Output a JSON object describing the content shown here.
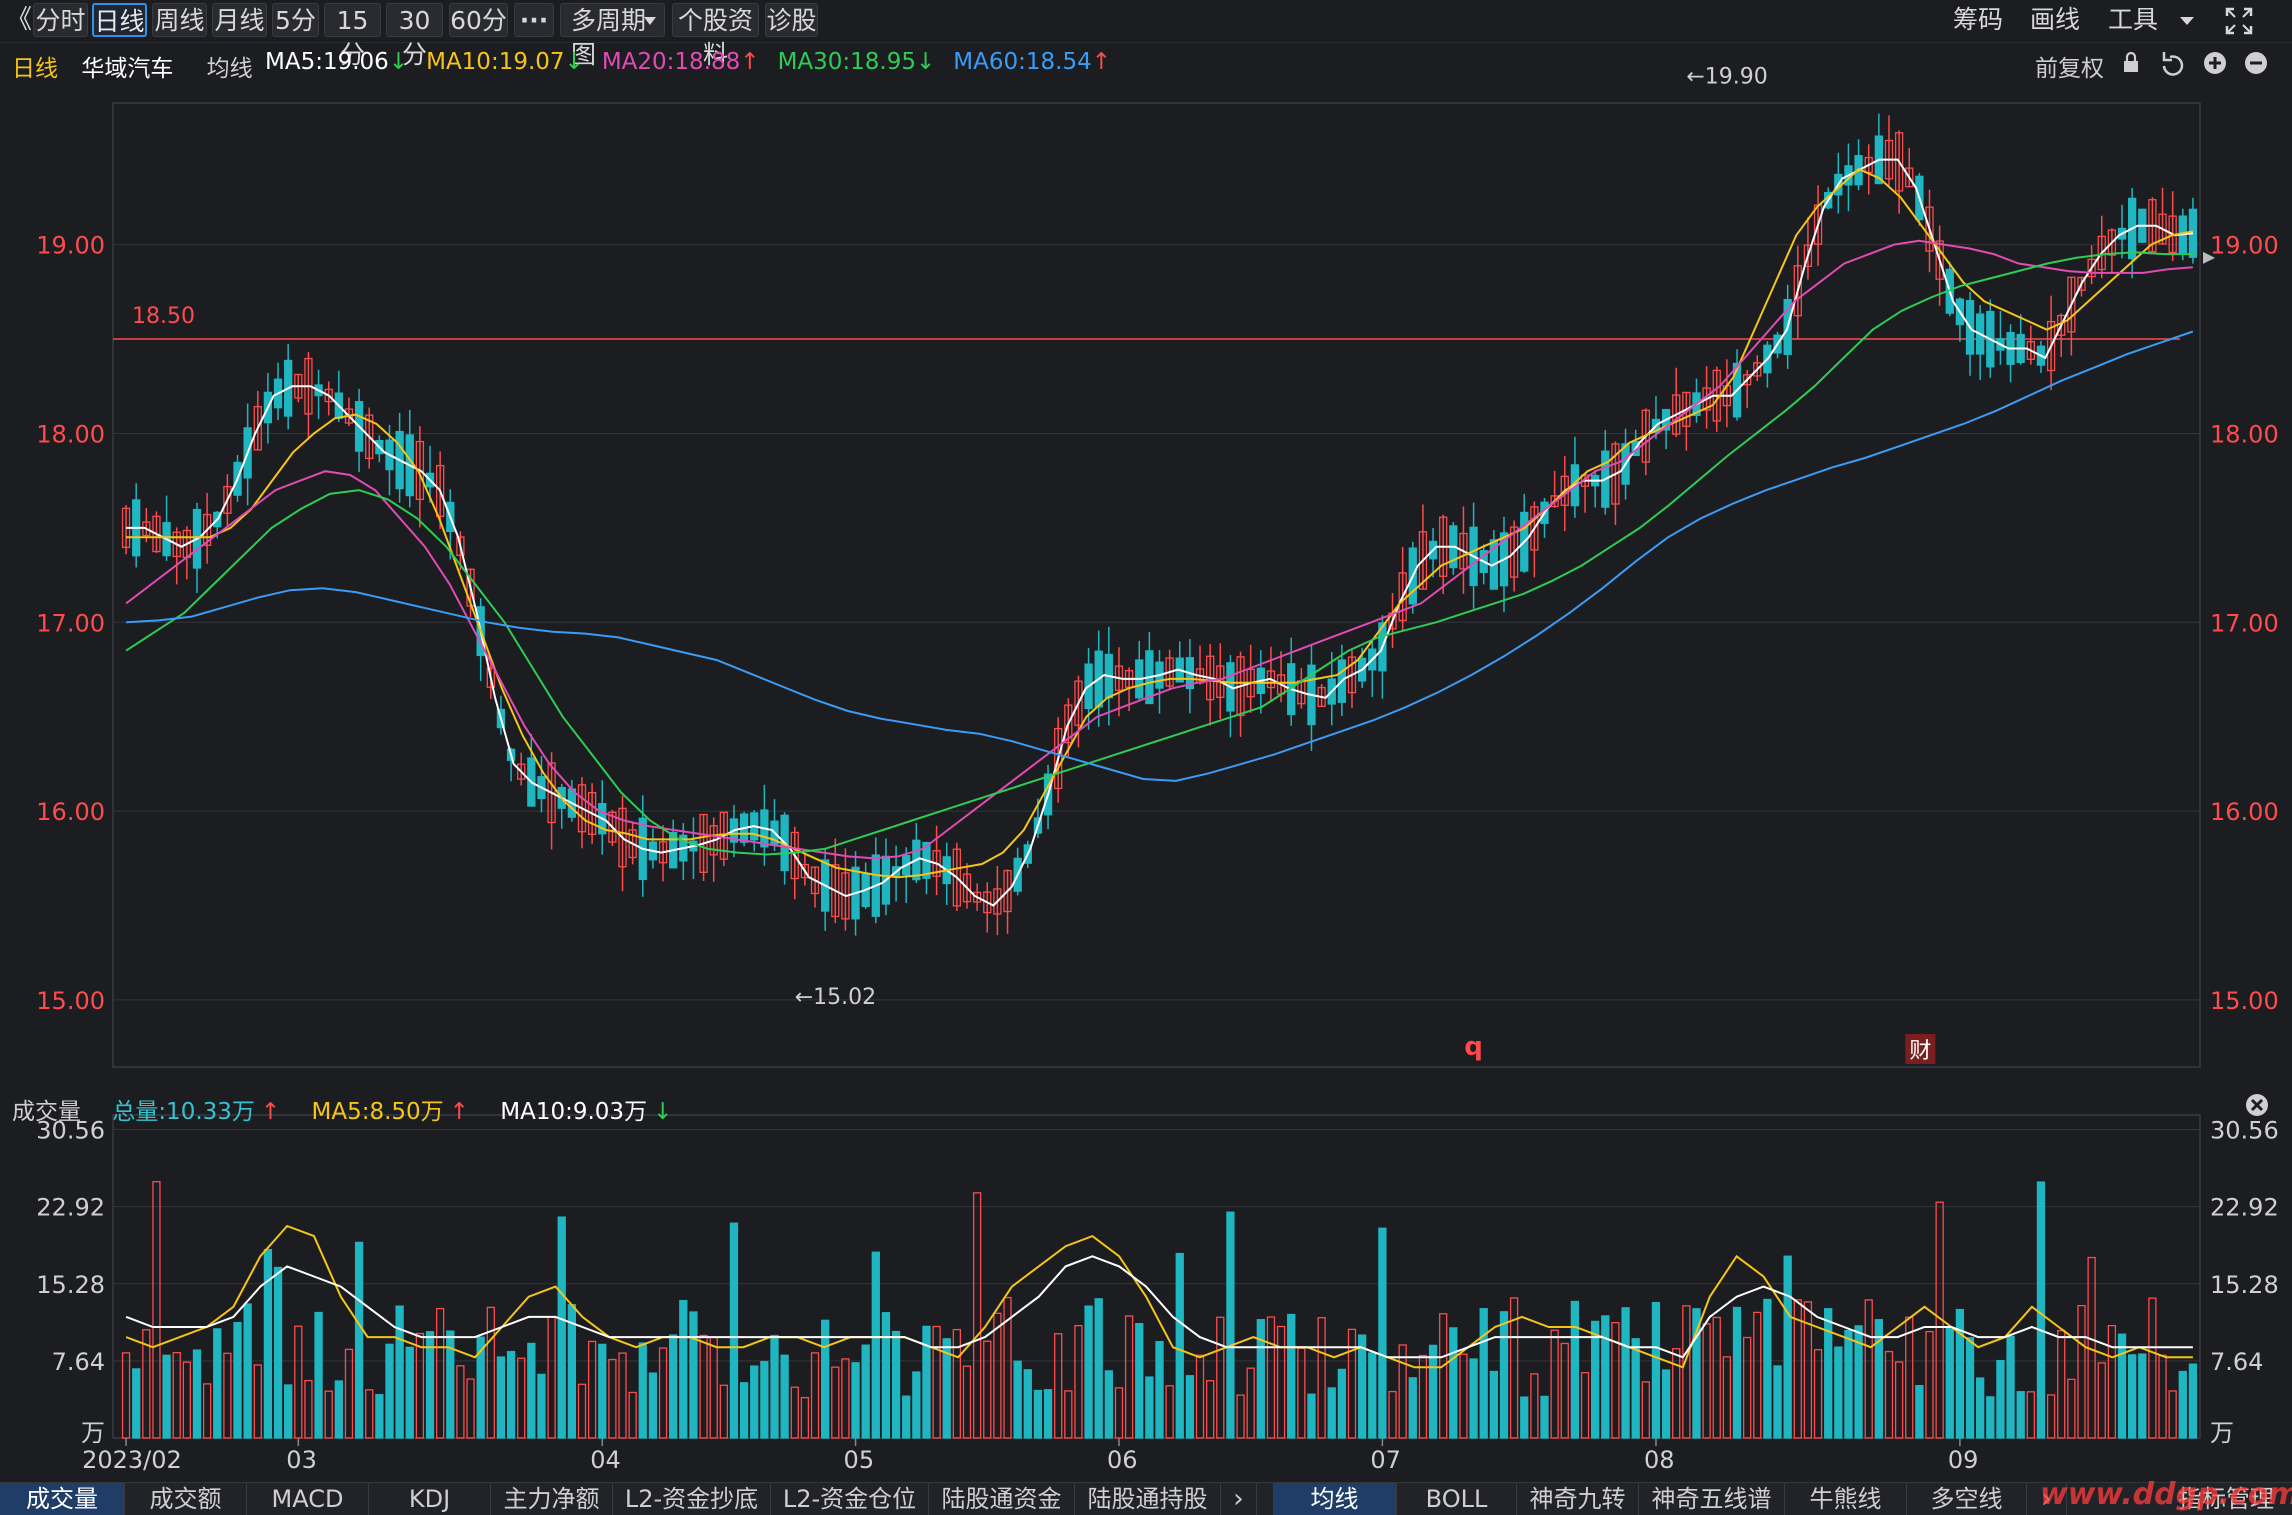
{
  "toolbar": {
    "back": "《",
    "tabs": [
      "分时",
      "日线",
      "周线",
      "月线",
      "5分",
      "15分",
      "30分",
      "60分",
      "···",
      "多周期图",
      "个股资料",
      "诊股"
    ],
    "active_tab": "日线",
    "right": [
      "筹码",
      "画线",
      "工具"
    ]
  },
  "legend": {
    "period": "日线",
    "stock_name": "华域汽车",
    "avg_label": "均线",
    "ma": [
      {
        "text": "MA5:19.06",
        "dir": "down",
        "color": "#ffffff"
      },
      {
        "text": "MA10:19.07",
        "dir": "down",
        "color": "#f5c518"
      },
      {
        "text": "MA20:18.88",
        "dir": "up",
        "color": "#e04bb4"
      },
      {
        "text": "MA30:18.95",
        "dir": "down",
        "color": "#2ecc55"
      },
      {
        "text": "MA60:18.54",
        "dir": "up",
        "color": "#3b9cf5"
      }
    ],
    "adjust": "前复权"
  },
  "volume_legend": {
    "title": "成交量",
    "total": "总量:10.33万",
    "ma5": "MA5:8.50万",
    "ma10": "MA10:9.03万"
  },
  "bottom_tabs_left": [
    "成交量",
    "成交额",
    "MACD",
    "KDJ",
    "主力净额",
    "L2-资金抄底",
    "L2-资金仓位",
    "陆股通资金",
    "陆股通持股"
  ],
  "bottom_tabs_right": [
    "均线",
    "BOLL",
    "神奇九转",
    "神奇五线谱",
    "牛熊线",
    "多空线"
  ],
  "bottom_right_label": "指标管理",
  "watermark": "www.ddgp.com",
  "chart_data": {
    "type": "candlestick",
    "price_axis": {
      "ticks": [
        "19.00",
        "18.00",
        "17.00",
        "16.00",
        "15.00"
      ],
      "ylim": [
        14.65,
        19.75
      ]
    },
    "volume_axis": {
      "ticks": [
        "30.56",
        "22.92",
        "15.28",
        "7.64",
        "万"
      ],
      "ylim": [
        0,
        32
      ],
      "unit": "万"
    },
    "x_month_labels": [
      {
        "label": "2023/02",
        "index": 0
      },
      {
        "label": "03",
        "index": 17
      },
      {
        "label": "04",
        "index": 47
      },
      {
        "label": "05",
        "index": 72
      },
      {
        "label": "06",
        "index": 98
      },
      {
        "label": "07",
        "index": 124
      },
      {
        "label": "08",
        "index": 151
      },
      {
        "label": "09",
        "index": 181
      }
    ],
    "hline": {
      "label": "18.50",
      "value": 18.5
    },
    "annotations": [
      {
        "text": "←19.90",
        "index": 154,
        "value": 19.9
      },
      {
        "text": "←15.02",
        "index": 66,
        "value": 15.02
      }
    ],
    "markers": [
      {
        "text": "q",
        "index": 133
      },
      {
        "text": "财",
        "index": 177
      }
    ],
    "series": [
      {
        "name": "MA5",
        "color": "#ffffff",
        "values": [
          17.5,
          17.5,
          17.45,
          17.4,
          17.45,
          17.55,
          17.75,
          18.0,
          18.2,
          18.25,
          18.25,
          18.2,
          18.1,
          18.0,
          17.9,
          17.85,
          17.8,
          17.7,
          17.45,
          17.05,
          16.6,
          16.25,
          16.15,
          16.1,
          16.05,
          16.0,
          15.95,
          15.85,
          15.8,
          15.78,
          15.8,
          15.82,
          15.85,
          15.9,
          15.92,
          15.9,
          15.8,
          15.65,
          15.6,
          15.55,
          15.58,
          15.62,
          15.7,
          15.75,
          15.72,
          15.65,
          15.55,
          15.5,
          15.6,
          15.8,
          16.1,
          16.45,
          16.65,
          16.72,
          16.7,
          16.7,
          16.72,
          16.75,
          16.72,
          16.7,
          16.65,
          16.68,
          16.7,
          16.65,
          16.62,
          16.6,
          16.7,
          16.75,
          16.85,
          17.1,
          17.3,
          17.4,
          17.4,
          17.35,
          17.3,
          17.35,
          17.45,
          17.6,
          17.7,
          17.75,
          17.75,
          17.8,
          17.95,
          18.05,
          18.1,
          18.15,
          18.2,
          18.2,
          18.3,
          18.4,
          18.55,
          18.9,
          19.2,
          19.35,
          19.4,
          19.45,
          19.45,
          19.3,
          19.0,
          18.7,
          18.55,
          18.5,
          18.45,
          18.45,
          18.4,
          18.6,
          18.8,
          18.95,
          19.05,
          19.1,
          19.1,
          19.05,
          19.06
        ]
      },
      {
        "name": "MA10",
        "color": "#f5c518",
        "values": [
          17.45,
          17.45,
          17.45,
          17.45,
          17.45,
          17.5,
          17.6,
          17.75,
          17.9,
          18.0,
          18.08,
          18.1,
          18.05,
          17.95,
          17.8,
          17.55,
          17.25,
          16.95,
          16.65,
          16.4,
          16.2,
          16.05,
          15.95,
          15.9,
          15.88,
          15.85,
          15.85,
          15.85,
          15.87,
          15.88,
          15.88,
          15.85,
          15.8,
          15.75,
          15.7,
          15.68,
          15.66,
          15.65,
          15.66,
          15.68,
          15.7,
          15.72,
          15.78,
          15.9,
          16.1,
          16.3,
          16.5,
          16.6,
          16.65,
          16.68,
          16.7,
          16.7,
          16.69,
          16.68,
          16.68,
          16.68,
          16.68,
          16.7,
          16.72,
          16.8,
          16.95,
          17.1,
          17.2,
          17.3,
          17.35,
          17.4,
          17.45,
          17.5,
          17.6,
          17.7,
          17.8,
          17.85,
          17.95,
          18.0,
          18.05,
          18.1,
          18.15,
          18.3,
          18.55,
          18.8,
          19.05,
          19.2,
          19.3,
          19.4,
          19.35,
          19.25,
          19.1,
          18.95,
          18.8,
          18.7,
          18.65,
          18.6,
          18.55,
          18.6,
          18.7,
          18.8,
          18.9,
          19.0,
          19.05,
          19.07
        ]
      },
      {
        "name": "MA20",
        "color": "#e04bb4",
        "values": [
          17.1,
          17.2,
          17.3,
          17.4,
          17.5,
          17.6,
          17.7,
          17.75,
          17.8,
          17.78,
          17.7,
          17.55,
          17.4,
          17.2,
          16.95,
          16.7,
          16.45,
          16.25,
          16.1,
          16.0,
          15.95,
          15.92,
          15.9,
          15.88,
          15.86,
          15.84,
          15.82,
          15.8,
          15.78,
          15.76,
          15.75,
          15.76,
          15.8,
          15.9,
          16.0,
          16.1,
          16.2,
          16.3,
          16.4,
          16.5,
          16.55,
          16.6,
          16.65,
          16.68,
          16.7,
          16.75,
          16.8,
          16.85,
          16.9,
          16.95,
          17.0,
          17.05,
          17.1,
          17.2,
          17.3,
          17.4,
          17.5,
          17.6,
          17.7,
          17.8,
          17.85,
          17.95,
          18.05,
          18.15,
          18.25,
          18.4,
          18.55,
          18.7,
          18.8,
          18.9,
          18.95,
          19.0,
          19.02,
          19.0,
          18.98,
          18.95,
          18.9,
          18.88,
          18.86,
          18.85,
          18.85,
          18.85,
          18.87,
          18.88
        ]
      },
      {
        "name": "MA30",
        "color": "#2ecc55",
        "values": [
          16.85,
          16.95,
          17.05,
          17.2,
          17.35,
          17.5,
          17.6,
          17.68,
          17.7,
          17.65,
          17.55,
          17.4,
          17.2,
          17.0,
          16.75,
          16.5,
          16.3,
          16.1,
          15.95,
          15.85,
          15.8,
          15.78,
          15.77,
          15.78,
          15.8,
          15.85,
          15.9,
          15.95,
          16.0,
          16.05,
          16.1,
          16.15,
          16.2,
          16.25,
          16.3,
          16.35,
          16.4,
          16.45,
          16.5,
          16.55,
          16.65,
          16.75,
          16.85,
          16.92,
          16.96,
          17.0,
          17.05,
          17.1,
          17.15,
          17.22,
          17.3,
          17.4,
          17.5,
          17.62,
          17.75,
          17.88,
          18.0,
          18.12,
          18.25,
          18.4,
          18.55,
          18.65,
          18.72,
          18.78,
          18.82,
          18.86,
          18.9,
          18.93,
          18.95,
          18.96,
          18.95,
          18.95
        ]
      },
      {
        "name": "MA60",
        "color": "#3b9cf5",
        "values": [
          17.0,
          17.01,
          17.03,
          17.08,
          17.13,
          17.17,
          17.18,
          17.16,
          17.12,
          17.08,
          17.04,
          17.0,
          16.97,
          16.95,
          16.94,
          16.92,
          16.88,
          16.84,
          16.8,
          16.73,
          16.66,
          16.59,
          16.53,
          16.49,
          16.46,
          16.43,
          16.41,
          16.37,
          16.32,
          16.27,
          16.22,
          16.17,
          16.16,
          16.2,
          16.25,
          16.3,
          16.36,
          16.42,
          16.48,
          16.55,
          16.63,
          16.72,
          16.82,
          16.93,
          17.05,
          17.18,
          17.32,
          17.45,
          17.55,
          17.63,
          17.7,
          17.76,
          17.82,
          17.87,
          17.93,
          17.99,
          18.05,
          18.12,
          18.2,
          18.28,
          18.35,
          18.42,
          18.48,
          18.54
        ]
      },
      {
        "name": "VolMA5",
        "color": "#f5c518",
        "values": [
          10,
          9,
          10,
          11,
          13,
          18,
          21,
          20,
          14,
          10,
          10,
          9,
          9,
          8,
          11,
          14,
          15,
          12,
          10,
          9,
          10,
          10,
          9,
          9,
          10,
          10,
          9,
          10,
          10,
          10,
          9,
          8,
          11,
          15,
          17,
          19,
          20,
          18,
          14,
          9,
          8,
          9,
          10,
          9,
          9,
          8,
          9,
          8,
          7,
          7,
          9,
          11,
          12,
          11,
          11,
          10,
          9,
          8,
          7,
          14,
          18,
          16,
          12,
          11,
          10,
          9,
          11,
          13,
          11,
          9,
          10,
          13,
          11,
          9,
          8,
          9,
          8,
          8
        ]
      },
      {
        "name": "VolMA10",
        "color": "#ffffff",
        "values": [
          12,
          11,
          11,
          11,
          12,
          15,
          17,
          16,
          15,
          13,
          11,
          10,
          10,
          10,
          11,
          12,
          12,
          11,
          10,
          10,
          10,
          10,
          10,
          10,
          10,
          10,
          10,
          10,
          10,
          10,
          9,
          9,
          10,
          12,
          14,
          17,
          18,
          17,
          15,
          12,
          10,
          9,
          9,
          9,
          9,
          9,
          9,
          8,
          8,
          8,
          9,
          10,
          10,
          10,
          10,
          10,
          9,
          9,
          8,
          12,
          14,
          15,
          14,
          12,
          11,
          10,
          10,
          11,
          11,
          10,
          10,
          11,
          10,
          10,
          9,
          9,
          9,
          9
        ]
      }
    ]
  }
}
